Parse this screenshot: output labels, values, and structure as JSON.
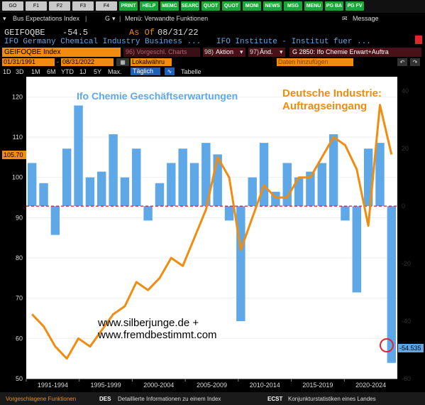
{
  "toolbar": {
    "keys": [
      "GO",
      "F1",
      "F2",
      "F3",
      "F4",
      "PRINT",
      "HELP",
      "MEMC",
      "SEARC",
      "QUOT",
      "QUOT",
      "MONI",
      "NEWS",
      "MSG",
      "MENU",
      "PG BA",
      "PG FV"
    ]
  },
  "menu": {
    "title": "Bus Expectations Index",
    "g_label": "G",
    "related": "Menü: Verwandte Funktionen",
    "message": "Message"
  },
  "ticker": {
    "symbol": "GEIFOQBE",
    "value": "-54.5",
    "asof_label": "As Of",
    "asof_date": "08/31/22",
    "desc_left": "IFO Germany Chemical Industry Business ...",
    "desc_right": "IFO Institute - Institut fuer ..."
  },
  "commands": {
    "index_field": "GEIFOQBE Index",
    "vorgeschl": "96) Vorgeschl. Charts",
    "aktion": "Aktion",
    "aktion_num": "98)",
    "aend": "Änd.",
    "aend_num": "97)",
    "chart_name": "G 2850: Ifo Chemie Erwart+Auftra"
  },
  "dates": {
    "start": "01/31/1991",
    "end": "08/31/2022",
    "currency": "Lokalwähru",
    "add_data": "Daten hinzufügen"
  },
  "periods": [
    "1D",
    "3D",
    "1M",
    "6M",
    "YTD",
    "1J",
    "5Y",
    "Max."
  ],
  "frequency": "Täglich",
  "table_label": "Tabelle",
  "footer": {
    "suggested": "Vorgeschlagene Funktionen",
    "des_code": "DES",
    "des_text": "Detaillierte Informationen zu einem Index",
    "ecst_code": "ECST",
    "ecst_text": "Konjunkturstatistiken eines Landes"
  },
  "colors": {
    "blue": "#5fa8e8",
    "orange": "#f08c10",
    "bg": "#000000",
    "red": "#e0262b"
  },
  "chart_data": {
    "type": "bar+line",
    "title": "",
    "series": [
      {
        "name": "Ifo Chemie Geschäftserwartungen",
        "axis": "right",
        "type": "bar",
        "x": [
          "1991",
          "1992",
          "1993",
          "1994",
          "1995",
          "1996",
          "1997",
          "1998",
          "1999",
          "2000",
          "2001",
          "2002",
          "2003",
          "2004",
          "2005",
          "2006",
          "2007",
          "2008",
          "2009",
          "2010",
          "2011",
          "2012",
          "2013",
          "2014",
          "2015",
          "2016",
          "2017",
          "2018",
          "2019",
          "2020",
          "2021",
          "2022"
        ],
        "values": [
          15,
          8,
          -10,
          20,
          35,
          10,
          12,
          25,
          10,
          20,
          -5,
          8,
          15,
          20,
          15,
          22,
          18,
          -5,
          -40,
          10,
          22,
          5,
          15,
          10,
          12,
          15,
          25,
          -5,
          -30,
          20,
          22,
          -54.5
        ]
      },
      {
        "name": "Deutsche Industrie: Auftragseingang",
        "axis": "left",
        "type": "line",
        "x": [
          "1991",
          "1992",
          "1993",
          "1994",
          "1995",
          "1996",
          "1997",
          "1998",
          "1999",
          "2000",
          "2001",
          "2002",
          "2003",
          "2004",
          "2005",
          "2006",
          "2007",
          "2008",
          "2009",
          "2010",
          "2011",
          "2012",
          "2013",
          "2014",
          "2015",
          "2016",
          "2017",
          "2018",
          "2019",
          "2020",
          "2021",
          "2022"
        ],
        "values": [
          66,
          63,
          58,
          55,
          60,
          58,
          62,
          66,
          68,
          74,
          72,
          75,
          80,
          78,
          85,
          92,
          105,
          100,
          82,
          90,
          98,
          95,
          95,
          100,
          100,
          105,
          110,
          108,
          102,
          88,
          118,
          105.7
        ]
      }
    ],
    "left_axis": {
      "ticks": [
        "50",
        "60",
        "70",
        "80",
        "90",
        "100",
        "110",
        "120"
      ],
      "ylim": [
        50,
        125
      ]
    },
    "right_axis": {
      "ticks": [
        "-60",
        "-40",
        "-20",
        "0",
        "20",
        "40"
      ],
      "ylim": [
        -60,
        45
      ]
    },
    "x_ticks": [
      "1991-1994",
      "1995-1999",
      "2000-2004",
      "2005-2009",
      "2010-2014",
      "2015-2019",
      "2020-2024"
    ],
    "left_last_label": "105.70",
    "right_last_label": "-54.535",
    "label_blue": "Ifo Chemie Geschäftserwartungen",
    "label_orange_line1": "Deutsche Industrie:",
    "label_orange_line2": "Auftragseingang",
    "watermark_line1": "www.silberjunge.de +",
    "watermark_line2": "www.fremdbestimmt.com"
  }
}
